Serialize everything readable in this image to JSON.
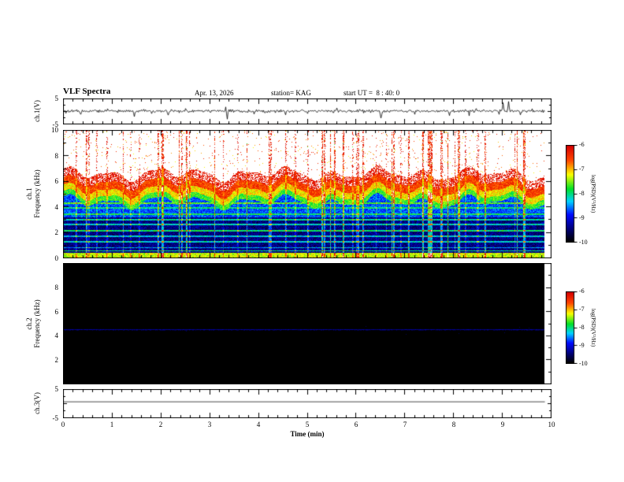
{
  "header": {
    "title": "VLF Spectra",
    "date": "Apr. 13, 2026",
    "station": "station= KAG",
    "start_ut": "start UT =  8 : 40: 0"
  },
  "x_axis": {
    "label": "Time (min)",
    "min": 0,
    "max": 10,
    "tick_labels": [
      "0",
      "1",
      "2",
      "3",
      "4",
      "5",
      "6",
      "7",
      "8",
      "9",
      "10"
    ]
  },
  "panels": {
    "ch1_wave": {
      "ylabel": "ch.1(V)",
      "y_ticks": [
        "5",
        "-5"
      ],
      "ymin": -5,
      "ymax": 5
    },
    "ch1_spec": {
      "ylabel_line1": "ch.1",
      "ylabel_line2": "Frequency (kHz)",
      "y_tick_labels": [
        "0",
        "2",
        "4",
        "6",
        "8",
        "10"
      ],
      "ymin": 0,
      "ymax": 10
    },
    "ch2_spec": {
      "ylabel_line1": "ch.2",
      "ylabel_line2": "Frequency (kHz)",
      "y_tick_labels": [
        "2",
        "4",
        "6",
        "8"
      ],
      "ymin": 0,
      "ymax": 10
    },
    "ch3_wave": {
      "ylabel": "ch.3(V)",
      "y_ticks": [
        "5",
        "-5"
      ],
      "ymin": -5,
      "ymax": 5
    }
  },
  "colorbar": {
    "label": "log(PSD)(V²/Hz)",
    "tick_labels": [
      "-6",
      "-7",
      "-8",
      "-9",
      "-10"
    ],
    "vmin": -10,
    "vmax": -6
  },
  "chart_data": [
    {
      "type": "line",
      "name": "ch.1 voltage waveform",
      "xlabel": "Time (min)",
      "xlim": [
        0,
        10
      ],
      "ylim": [
        -5,
        5
      ],
      "baseline": 0,
      "noise_amplitude": 0.25,
      "data_end_min": 9.85,
      "spikes": [
        {
          "t": 0.35,
          "v": -1.3
        },
        {
          "t": 0.9,
          "v": 0.9
        },
        {
          "t": 1.45,
          "v": -2.2
        },
        {
          "t": 1.8,
          "v": -1.0
        },
        {
          "t": 2.15,
          "v": -1.6
        },
        {
          "t": 2.5,
          "v": 1.0
        },
        {
          "t": 3.35,
          "v": -3.2
        },
        {
          "t": 3.9,
          "v": -1.2
        },
        {
          "t": 4.55,
          "v": -1.5
        },
        {
          "t": 5.0,
          "v": -1.0
        },
        {
          "t": 5.6,
          "v": 1.2
        },
        {
          "t": 6.5,
          "v": -2.8
        },
        {
          "t": 7.2,
          "v": -1.3
        },
        {
          "t": 7.9,
          "v": -1.8
        },
        {
          "t": 8.45,
          "v": 1.0
        },
        {
          "t": 9.0,
          "v": 3.3
        },
        {
          "t": 9.12,
          "v": 3.8
        },
        {
          "t": 9.35,
          "v": -1.5
        },
        {
          "t": 9.6,
          "v": 0.9
        }
      ]
    },
    {
      "type": "heatmap",
      "name": "ch.1 spectrogram",
      "xlim": [
        0,
        10
      ],
      "ylim": [
        0,
        10
      ],
      "clim": [
        -10,
        -6
      ],
      "data_end_min": 9.85,
      "vertical_streak_probability": 0.1,
      "bands": [
        {
          "f_min": 6.6,
          "f_max": 10,
          "level": -5.4
        },
        {
          "f_min": 5.9,
          "f_max": 6.6,
          "level": -6.05
        },
        {
          "f_min": 5.3,
          "f_max": 5.9,
          "level": -6.5
        },
        {
          "f_min": 4.8,
          "f_max": 5.3,
          "level": -7.1
        },
        {
          "f_min": 4.4,
          "f_max": 4.8,
          "level": -7.7
        },
        {
          "f_min": 3.2,
          "f_max": 4.4,
          "level": -8.7
        },
        {
          "f_min": 0.38,
          "f_max": 3.2,
          "level": -9.45
        },
        {
          "f_min": 0,
          "f_max": 0.38,
          "level": -7.3
        }
      ],
      "spectral_lines": [
        {
          "f": 4.3,
          "level": -7.6
        },
        {
          "f": 3.9,
          "level": -8.0
        },
        {
          "f": 3.45,
          "level": -7.9
        },
        {
          "f": 3.0,
          "level": -8.1
        },
        {
          "f": 2.6,
          "level": -8.2
        },
        {
          "f": 2.15,
          "level": -7.9
        },
        {
          "f": 1.7,
          "level": -8.3
        },
        {
          "f": 1.25,
          "level": -8.2
        },
        {
          "f": 0.8,
          "level": -8.4
        },
        {
          "f": 0.55,
          "level": -8.0
        }
      ]
    },
    {
      "type": "heatmap",
      "name": "ch.2 spectrogram",
      "xlim": [
        0,
        10
      ],
      "ylim": [
        0,
        10
      ],
      "clim": [
        -10,
        -6
      ],
      "data_end_min": 9.85,
      "background_level": -10.4,
      "spectral_lines": [
        {
          "f": 4.5,
          "level": -9.25
        }
      ]
    },
    {
      "type": "line",
      "name": "ch.3 voltage waveform",
      "xlim": [
        0,
        10
      ],
      "ylim": [
        -5,
        5
      ],
      "constant_value": 0.5,
      "noise_amplitude": 0,
      "data_end_min": 9.85
    }
  ]
}
